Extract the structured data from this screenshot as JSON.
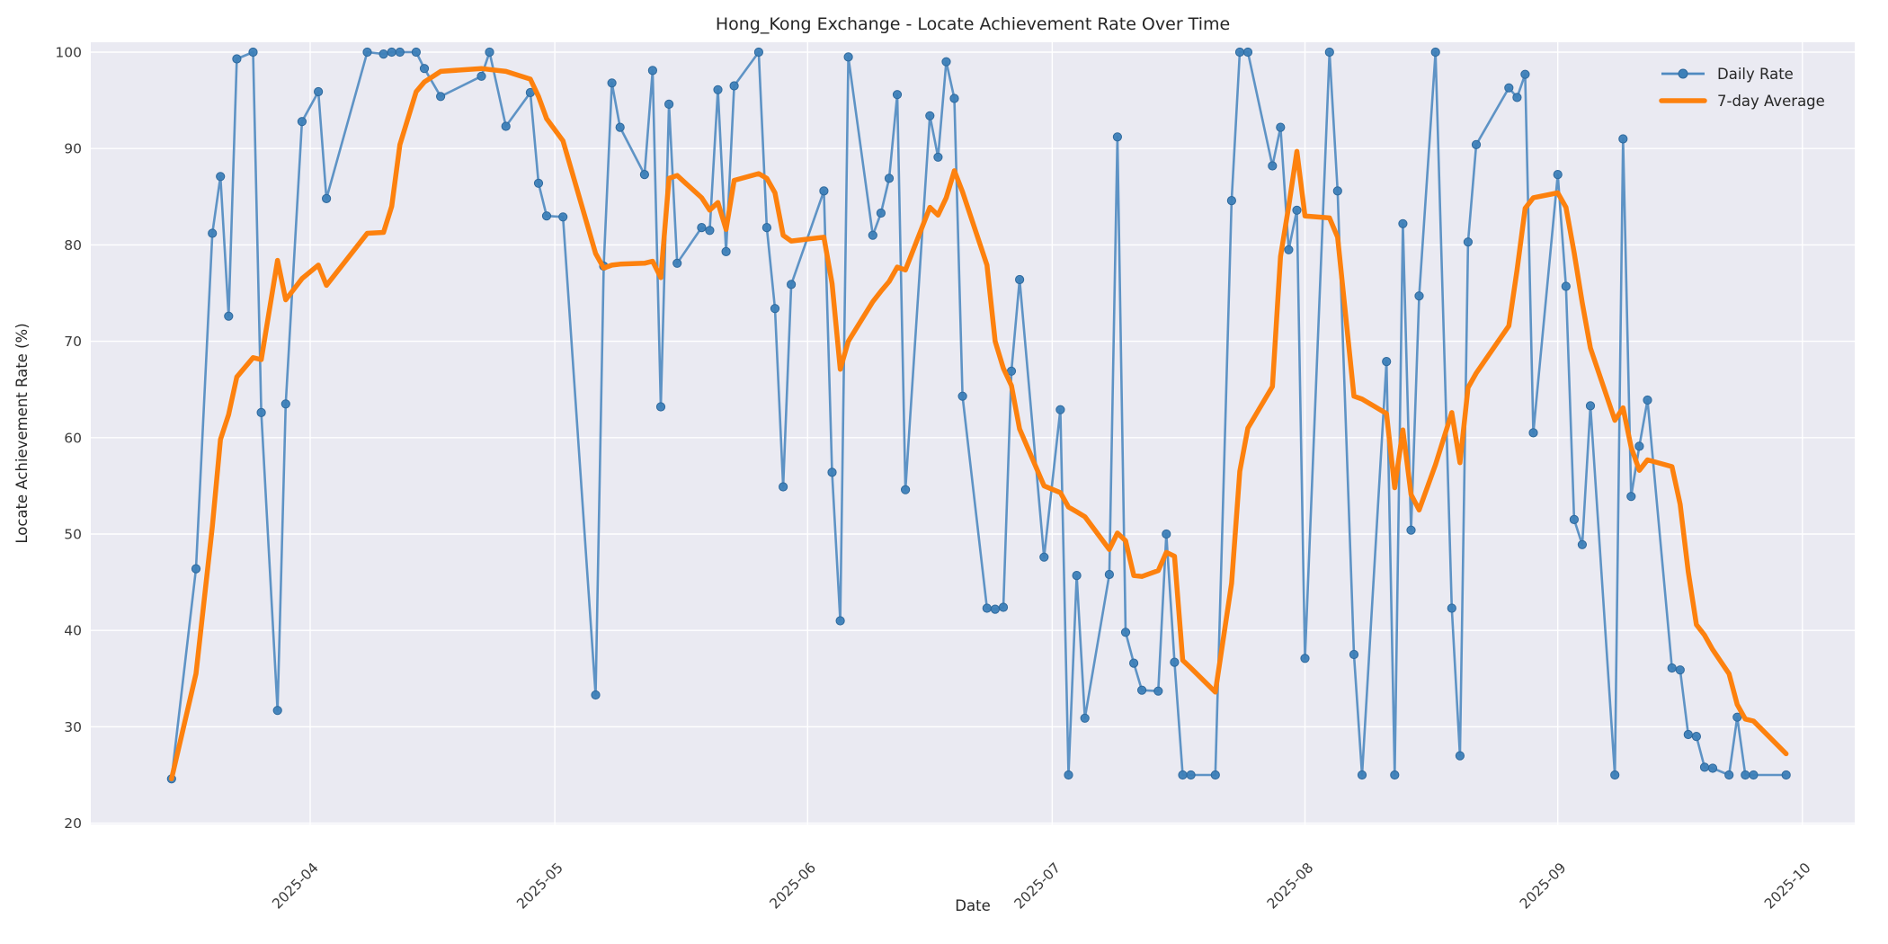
{
  "figure": {
    "title": "Hong_Kong Exchange - Locate Achievement Rate Over Time",
    "xlabel": "Date",
    "ylabel": "Locate Achievement Rate (%)",
    "background_color": "#ffffff",
    "axes_background_color": "#eaeaf2",
    "grid_color": "#ffffff"
  },
  "legend": {
    "position": "upper right",
    "entries": [
      {
        "label": "Daily Rate",
        "color": "#4f8ac0",
        "style": "line-with-marker"
      },
      {
        "label": "7-day Average",
        "color": "#fd810e",
        "style": "thick-line"
      }
    ]
  },
  "chart_data": {
    "type": "line",
    "title": "Hong_Kong Exchange - Locate Achievement Rate Over Time",
    "xlabel": "Date",
    "ylabel": "Locate Achievement Rate (%)",
    "grid": true,
    "legend_position": "upper right",
    "ylim": [
      19.5,
      101.3
    ],
    "y_ticks": [
      20,
      30,
      40,
      50,
      60,
      70,
      80,
      90,
      100
    ],
    "x_ticks": [
      "2025-04",
      "2025-05",
      "2025-06",
      "2025-07",
      "2025-08",
      "2025-09",
      "2025-10"
    ],
    "x": [
      "2025-03-15",
      "2025-03-18",
      "2025-03-20",
      "2025-03-21",
      "2025-03-22",
      "2025-03-23",
      "2025-03-25",
      "2025-03-26",
      "2025-03-28",
      "2025-03-29",
      "2025-03-31",
      "2025-04-02",
      "2025-04-03",
      "2025-04-08",
      "2025-04-10",
      "2025-04-11",
      "2025-04-12",
      "2025-04-14",
      "2025-04-15",
      "2025-04-17",
      "2025-04-22",
      "2025-04-23",
      "2025-04-25",
      "2025-04-28",
      "2025-04-29",
      "2025-04-30",
      "2025-05-02",
      "2025-05-06",
      "2025-05-07",
      "2025-05-08",
      "2025-05-09",
      "2025-05-12",
      "2025-05-13",
      "2025-05-14",
      "2025-05-15",
      "2025-05-16",
      "2025-05-19",
      "2025-05-20",
      "2025-05-21",
      "2025-05-22",
      "2025-05-23",
      "2025-05-26",
      "2025-05-27",
      "2025-05-28",
      "2025-05-29",
      "2025-05-30",
      "2025-06-03",
      "2025-06-04",
      "2025-06-05",
      "2025-06-06",
      "2025-06-09",
      "2025-06-10",
      "2025-06-11",
      "2025-06-12",
      "2025-06-13",
      "2025-06-16",
      "2025-06-17",
      "2025-06-18",
      "2025-06-19",
      "2025-06-20",
      "2025-06-23",
      "2025-06-24",
      "2025-06-25",
      "2025-06-26",
      "2025-06-27",
      "2025-06-30",
      "2025-07-02",
      "2025-07-03",
      "2025-07-04",
      "2025-07-05",
      "2025-07-08",
      "2025-07-09",
      "2025-07-10",
      "2025-07-11",
      "2025-07-12",
      "2025-07-14",
      "2025-07-15",
      "2025-07-16",
      "2025-07-17",
      "2025-07-18",
      "2025-07-21",
      "2025-07-23",
      "2025-07-24",
      "2025-07-25",
      "2025-07-28",
      "2025-07-29",
      "2025-07-30",
      "2025-07-31",
      "2025-08-01",
      "2025-08-04",
      "2025-08-05",
      "2025-08-07",
      "2025-08-08",
      "2025-08-11",
      "2025-08-12",
      "2025-08-13",
      "2025-08-14",
      "2025-08-15",
      "2025-08-17",
      "2025-08-19",
      "2025-08-20",
      "2025-08-21",
      "2025-08-22",
      "2025-08-26",
      "2025-08-27",
      "2025-08-28",
      "2025-08-29",
      "2025-09-01",
      "2025-09-02",
      "2025-09-03",
      "2025-09-04",
      "2025-09-05",
      "2025-09-08",
      "2025-09-09",
      "2025-09-10",
      "2025-09-11",
      "2025-09-12",
      "2025-09-15",
      "2025-09-16",
      "2025-09-17",
      "2025-09-18",
      "2025-09-19",
      "2025-09-20",
      "2025-09-22",
      "2025-09-23",
      "2025-09-24",
      "2025-09-25",
      "2025-09-29"
    ],
    "series": [
      {
        "name": "Daily Rate",
        "color": "#4f8ac0",
        "marker_color": "#3d80b8",
        "line_width": 2.6,
        "marker": "circle",
        "values": [
          24.6,
          46.4,
          81.2,
          87.1,
          72.6,
          99.3,
          100.0,
          62.6,
          31.7,
          63.5,
          92.8,
          95.9,
          84.8,
          100.0,
          99.8,
          100.0,
          100.0,
          100.0,
          98.3,
          95.4,
          97.5,
          100.0,
          92.3,
          95.8,
          86.4,
          83.0,
          82.9,
          33.3,
          77.8,
          96.8,
          92.2,
          87.3,
          98.1,
          63.2,
          94.6,
          78.1,
          81.8,
          81.5,
          96.1,
          79.3,
          96.5,
          100.0,
          81.8,
          73.4,
          54.9,
          75.9,
          85.6,
          56.4,
          41.0,
          99.5,
          81.0,
          83.3,
          86.9,
          95.6,
          54.6,
          93.4,
          89.1,
          99.0,
          95.2,
          64.3,
          42.3,
          42.2,
          42.4,
          66.9,
          76.4,
          47.6,
          62.9,
          25.0,
          45.7,
          30.9,
          45.8,
          91.2,
          39.8,
          36.6,
          33.8,
          33.7,
          50.0,
          36.7,
          25.0,
          25.0,
          25.0,
          84.6,
          100.0,
          100.0,
          88.2,
          92.2,
          79.5,
          83.6,
          37.1,
          100.0,
          85.6,
          37.5,
          25.0,
          67.9,
          25.0,
          82.2,
          50.4,
          74.7,
          100.0,
          42.3,
          27.0,
          80.3,
          90.4,
          96.3,
          95.3,
          97.7,
          60.5,
          87.3,
          75.7,
          51.5,
          48.9,
          63.3,
          25.0,
          91.0,
          53.9,
          59.1,
          63.9,
          36.1,
          35.9,
          29.2,
          29.0,
          25.8,
          25.7,
          25.0,
          31.0,
          25.0,
          25.0,
          25.0
        ]
      },
      {
        "name": "7-day Average",
        "color": "#fd810e",
        "line_width": 5.5,
        "marker": "none",
        "values": [
          24.6,
          35.5,
          50.8,
          59.8,
          62.4,
          66.3,
          68.3,
          68.1,
          78.4,
          74.3,
          76.5,
          77.9,
          75.8,
          81.2,
          81.3,
          84.0,
          90.4,
          95.9,
          96.9,
          98.0,
          98.3,
          98.2,
          98.0,
          97.2,
          95.4,
          93.1,
          90.8,
          79.1,
          77.6,
          77.9,
          78.0,
          78.1,
          78.3,
          76.6,
          86.9,
          87.2,
          84.9,
          83.6,
          84.4,
          81.6,
          86.7,
          87.4,
          86.9,
          85.4,
          81.0,
          80.4,
          80.8,
          76.0,
          67.1,
          70.0,
          74.1,
          75.2,
          76.2,
          77.7,
          77.4,
          83.9,
          83.1,
          84.9,
          87.7,
          85.5,
          77.9,
          70.0,
          67.2,
          65.4,
          60.9,
          55.0,
          54.3,
          52.8,
          52.3,
          51.8,
          48.4,
          50.1,
          49.3,
          45.7,
          45.6,
          46.2,
          48.1,
          47.7,
          36.9,
          36.1,
          33.6,
          44.9,
          56.5,
          61.0,
          65.3,
          78.8,
          84.0,
          89.7,
          83.0,
          82.8,
          80.8,
          64.3,
          64.0,
          62.5,
          54.8,
          60.8,
          54.1,
          52.5,
          57.2,
          62.6,
          57.4,
          65.2,
          66.7,
          71.6,
          77.4,
          83.8,
          84.9,
          85.4,
          83.9,
          79.2,
          74.0,
          69.3,
          61.8,
          63.1,
          59.0,
          56.6,
          57.7,
          57.0,
          53.1,
          46.1,
          40.6,
          39.5,
          38.0,
          35.5,
          32.3,
          30.8,
          30.6,
          27.2
        ]
      }
    ]
  }
}
